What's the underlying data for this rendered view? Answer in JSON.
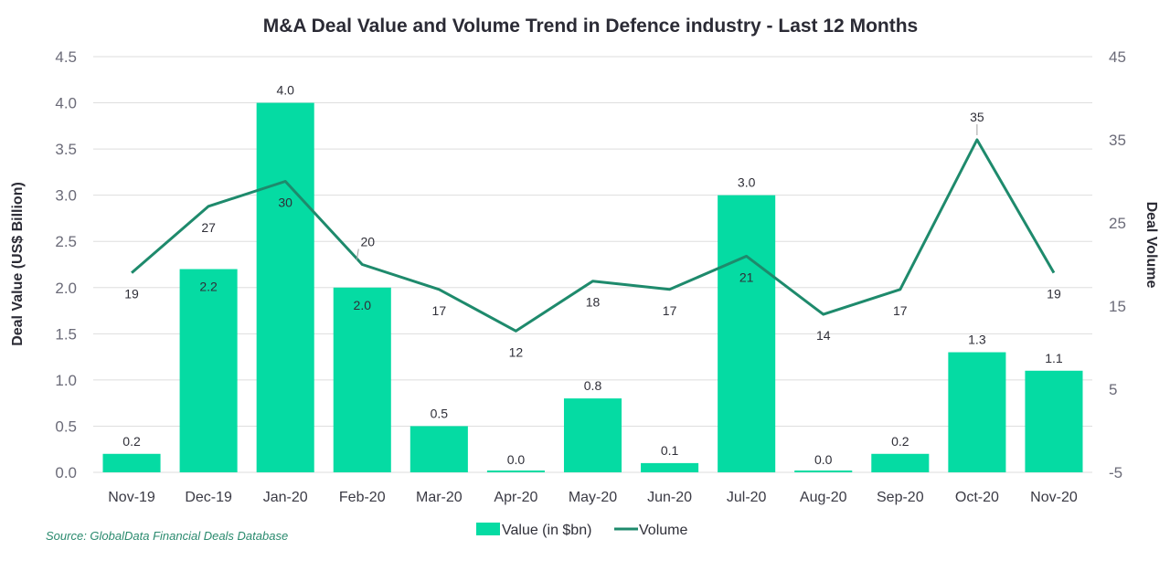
{
  "chart_data": {
    "type": "bar",
    "title": "M&A Deal Value and Volume Trend in Defence industry - Last 12 Months",
    "categories": [
      "Nov-19",
      "Dec-19",
      "Jan-20",
      "Feb-20",
      "Mar-20",
      "Apr-20",
      "May-20",
      "Jun-20",
      "Jul-20",
      "Aug-20",
      "Sep-20",
      "Oct-20",
      "Nov-20"
    ],
    "series": [
      {
        "name": "Value (in $bn)",
        "type": "bar",
        "axis": "left",
        "color": "#05DBA3",
        "values": [
          0.2,
          2.2,
          4.0,
          2.0,
          0.5,
          0.0,
          0.8,
          0.1,
          3.0,
          0.0,
          0.2,
          1.3,
          1.1
        ],
        "labels": [
          "0.2",
          "2.2",
          "4.0",
          "2.0",
          "0.5",
          "0.0",
          "0.8",
          "0.1",
          "3.0",
          "0.0",
          "0.2",
          "1.3",
          "1.1"
        ]
      },
      {
        "name": "Volume",
        "type": "line",
        "axis": "right",
        "color": "#1E8A6C",
        "values": [
          19,
          27,
          30,
          20,
          17,
          12,
          18,
          17,
          21,
          14,
          17,
          35,
          19
        ],
        "labels": [
          "19",
          "27",
          "30",
          "20",
          "17",
          "12",
          "18",
          "17",
          "21",
          "14",
          "17",
          "35",
          "19"
        ]
      }
    ],
    "ylabel": "Deal Value (US$ Billion)",
    "y2label": "Deal Volume",
    "xlabel": "",
    "ylim": [
      0,
      4.5
    ],
    "y2lim": [
      -5,
      45
    ],
    "yticks": [
      "0.0",
      "0.5",
      "1.0",
      "1.5",
      "2.0",
      "2.5",
      "3.0",
      "3.5",
      "4.0",
      "4.5"
    ],
    "y2ticks": [
      "-5",
      "5",
      "15",
      "25",
      "35",
      "45"
    ],
    "grid": true,
    "legend_position": "bottom-center",
    "source": "Source: GlobalData Financial Deals Database"
  }
}
